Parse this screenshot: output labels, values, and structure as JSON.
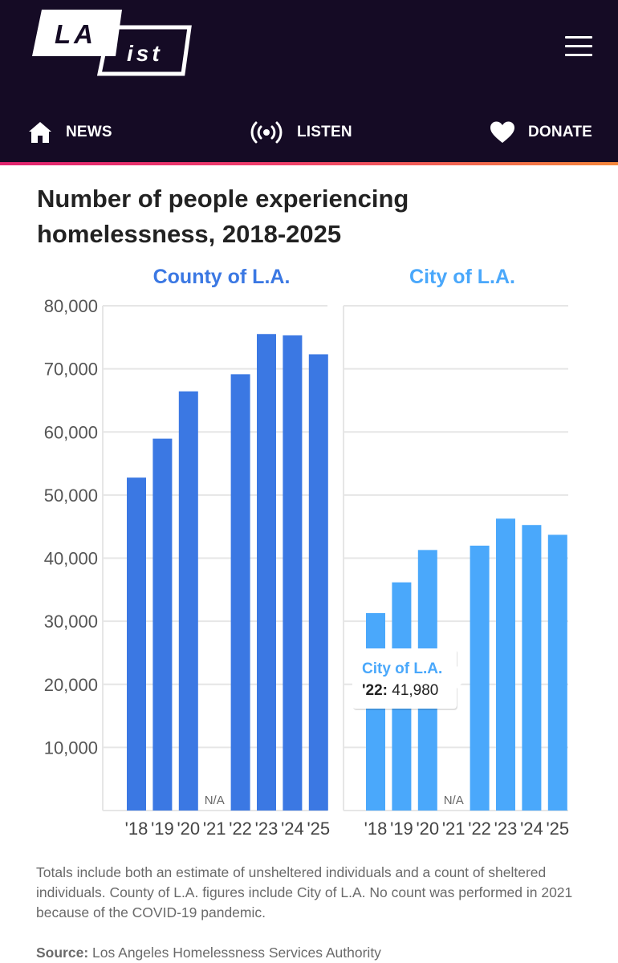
{
  "header": {
    "logo_line1": "LA",
    "logo_line2": "ist",
    "nav": [
      {
        "label": "NEWS",
        "icon": "home-icon"
      },
      {
        "label": "LISTEN",
        "icon": "broadcast-icon"
      },
      {
        "label": "DONATE",
        "icon": "heart-icon"
      }
    ]
  },
  "colors": {
    "header_bg": "#150b25",
    "county": "#3b78e3",
    "city": "#4aa8fb"
  },
  "chart_data": {
    "type": "bar",
    "title": "Number of people experiencing homelessness, 2018-2025",
    "categories": [
      "'18",
      "'19",
      "'20",
      "'21",
      "'22",
      "'23",
      "'24",
      "'25"
    ],
    "ylim": [
      0,
      80000
    ],
    "yticks": [
      10000,
      20000,
      30000,
      40000,
      50000,
      60000,
      70000,
      80000
    ],
    "ytick_labels": [
      "10,000",
      "20,000",
      "30,000",
      "40,000",
      "50,000",
      "60,000",
      "70,000",
      "80,000"
    ],
    "grid": true,
    "missing_label": "N/A",
    "series": [
      {
        "name": "County of L.A.",
        "values": [
          52765,
          58936,
          66436,
          null,
          69144,
          75518,
          75312,
          72308
        ]
      },
      {
        "name": "City of L.A.",
        "values": [
          31285,
          36165,
          41290,
          null,
          41980,
          46260,
          45252,
          43699
        ]
      }
    ],
    "tooltip": {
      "series": "City of L.A.",
      "category": "'22",
      "category_label": "'22:",
      "value_label": "41,980"
    }
  },
  "footer": {
    "note": "Totals include both an estimate of unsheltered individuals and a count of sheltered individuals. County of L.A. figures include City of L.A. No count was performed in 2021 because of the COVID-19 pandemic.",
    "source_label": "Source:",
    "source_text": "Los Angeles Homelessness Services Authority"
  }
}
